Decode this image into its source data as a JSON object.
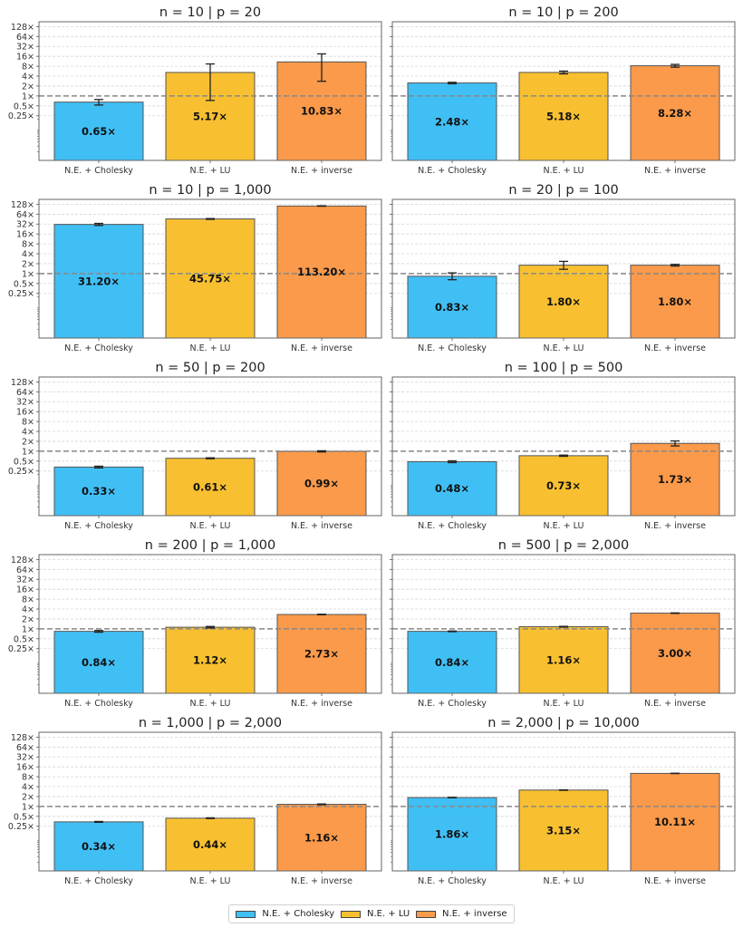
{
  "figure": {
    "ytick_labels": [
      "128×",
      "64×",
      "32×",
      "16×",
      "8×",
      "4×",
      "2×",
      "1×",
      "0.5×",
      "0.25×"
    ],
    "reference_label": "1×"
  },
  "legend": {
    "items": [
      {
        "label": "N.E. + Cholesky",
        "color": "#40BFF5"
      },
      {
        "label": "N.E. + LU",
        "color": "#F8C030"
      },
      {
        "label": "N.E. + inverse",
        "color": "#FA9A4A"
      }
    ]
  },
  "chart_data": [
    {
      "type": "bar",
      "title": "n = 10 | p = 20",
      "scale": "log2",
      "categories": [
        "N.E. + Cholesky",
        "N.E. + LU",
        "N.E. + inverse"
      ],
      "values": [
        0.65,
        5.17,
        10.83
      ],
      "labels": [
        "0.65×",
        "5.17×",
        "10.83×"
      ],
      "errors": [
        [
          0.53,
          0.78
        ],
        [
          0.73,
          9.4
        ],
        [
          2.8,
          19.0
        ]
      ],
      "yticks": [
        0.25,
        0.5,
        1,
        2,
        4,
        8,
        16,
        32,
        64,
        128
      ],
      "ylim": [
        0.011,
        180
      ],
      "reference_line": 1,
      "grid": true,
      "show_yticklabels": true
    },
    {
      "type": "bar",
      "title": "n = 10 | p = 200",
      "scale": "log2",
      "categories": [
        "N.E. + Cholesky",
        "N.E. + LU",
        "N.E. + inverse"
      ],
      "values": [
        2.48,
        5.18,
        8.28
      ],
      "labels": [
        "2.48×",
        "5.18×",
        "8.28×"
      ],
      "errors": [
        [
          2.35,
          2.6
        ],
        [
          4.7,
          5.7
        ],
        [
          7.5,
          9.1
        ]
      ],
      "yticks": [
        0.25,
        0.5,
        1,
        2,
        4,
        8,
        16,
        32,
        64,
        128
      ],
      "ylim": [
        0.011,
        180
      ],
      "reference_line": 1,
      "grid": true,
      "show_yticklabels": false
    },
    {
      "type": "bar",
      "title": "n = 10 | p = 1,000",
      "scale": "log2",
      "categories": [
        "N.E. + Cholesky",
        "N.E. + LU",
        "N.E. + inverse"
      ],
      "values": [
        31.2,
        45.75,
        113.2
      ],
      "labels": [
        "31.20×",
        "45.75×",
        "113.20×"
      ],
      "errors": [
        [
          29.0,
          33.5
        ],
        [
          44.5,
          47.0
        ],
        [
          111.5,
          115.0
        ]
      ],
      "yticks": [
        0.25,
        0.5,
        1,
        2,
        4,
        8,
        16,
        32,
        64,
        128
      ],
      "ylim": [
        0.011,
        180
      ],
      "reference_line": 1,
      "grid": true,
      "show_yticklabels": true
    },
    {
      "type": "bar",
      "title": "n = 20 | p = 100",
      "scale": "log2",
      "categories": [
        "N.E. + Cholesky",
        "N.E. + LU",
        "N.E. + inverse"
      ],
      "values": [
        0.83,
        1.8,
        1.8
      ],
      "labels": [
        "0.83×",
        "1.80×",
        "1.80×"
      ],
      "errors": [
        [
          0.65,
          1.05
        ],
        [
          1.35,
          2.35
        ],
        [
          1.7,
          1.9
        ]
      ],
      "yticks": [
        0.25,
        0.5,
        1,
        2,
        4,
        8,
        16,
        32,
        64,
        128
      ],
      "ylim": [
        0.011,
        180
      ],
      "reference_line": 1,
      "grid": true,
      "show_yticklabels": false
    },
    {
      "type": "bar",
      "title": "n = 50 | p = 200",
      "scale": "log2",
      "categories": [
        "N.E. + Cholesky",
        "N.E. + LU",
        "N.E. + inverse"
      ],
      "values": [
        0.33,
        0.61,
        0.99
      ],
      "labels": [
        "0.33×",
        "0.61×",
        "0.99×"
      ],
      "errors": [
        [
          0.31,
          0.35
        ],
        [
          0.59,
          0.63
        ],
        [
          0.95,
          1.03
        ]
      ],
      "yticks": [
        0.25,
        0.5,
        1,
        2,
        4,
        8,
        16,
        32,
        64,
        128
      ],
      "ylim": [
        0.011,
        180
      ],
      "reference_line": 1,
      "grid": true,
      "show_yticklabels": true
    },
    {
      "type": "bar",
      "title": "n = 100 | p = 500",
      "scale": "log2",
      "categories": [
        "N.E. + Cholesky",
        "N.E. + LU",
        "N.E. + inverse"
      ],
      "values": [
        0.48,
        0.73,
        1.73
      ],
      "labels": [
        "0.48×",
        "0.73×",
        "1.73×"
      ],
      "errors": [
        [
          0.45,
          0.51
        ],
        [
          0.7,
          0.76
        ],
        [
          1.45,
          2.05
        ]
      ],
      "yticks": [
        0.25,
        0.5,
        1,
        2,
        4,
        8,
        16,
        32,
        64,
        128
      ],
      "ylim": [
        0.011,
        180
      ],
      "reference_line": 1,
      "grid": true,
      "show_yticklabels": false
    },
    {
      "type": "bar",
      "title": "n = 200 | p = 1,000",
      "scale": "log2",
      "categories": [
        "N.E. + Cholesky",
        "N.E. + LU",
        "N.E. + inverse"
      ],
      "values": [
        0.84,
        1.12,
        2.73
      ],
      "labels": [
        "0.84×",
        "1.12×",
        "2.73×"
      ],
      "errors": [
        [
          0.79,
          0.89
        ],
        [
          1.06,
          1.18
        ],
        [
          2.68,
          2.78
        ]
      ],
      "yticks": [
        0.25,
        0.5,
        1,
        2,
        4,
        8,
        16,
        32,
        64,
        128
      ],
      "ylim": [
        0.011,
        180
      ],
      "reference_line": 1,
      "grid": true,
      "show_yticklabels": true
    },
    {
      "type": "bar",
      "title": "n = 500 | p = 2,000",
      "scale": "log2",
      "categories": [
        "N.E. + Cholesky",
        "N.E. + LU",
        "N.E. + inverse"
      ],
      "values": [
        0.84,
        1.16,
        3.0
      ],
      "labels": [
        "0.84×",
        "1.16×",
        "3.00×"
      ],
      "errors": [
        [
          0.82,
          0.86
        ],
        [
          1.13,
          1.19
        ],
        [
          2.95,
          3.05
        ]
      ],
      "yticks": [
        0.25,
        0.5,
        1,
        2,
        4,
        8,
        16,
        32,
        64,
        128
      ],
      "ylim": [
        0.011,
        180
      ],
      "reference_line": 1,
      "grid": true,
      "show_yticklabels": false
    },
    {
      "type": "bar",
      "title": "n = 1,000 | p = 2,000",
      "scale": "log2",
      "categories": [
        "N.E. + Cholesky",
        "N.E. + LU",
        "N.E. + inverse"
      ],
      "values": [
        0.34,
        0.44,
        1.16
      ],
      "labels": [
        "0.34×",
        "0.44×",
        "1.16×"
      ],
      "errors": [
        [
          0.33,
          0.35
        ],
        [
          0.43,
          0.45
        ],
        [
          1.13,
          1.19
        ]
      ],
      "yticks": [
        0.25,
        0.5,
        1,
        2,
        4,
        8,
        16,
        32,
        64,
        128
      ],
      "ylim": [
        0.011,
        180
      ],
      "reference_line": 1,
      "grid": true,
      "show_yticklabels": true
    },
    {
      "type": "bar",
      "title": "n = 2,000 | p = 10,000",
      "scale": "log2",
      "categories": [
        "N.E. + Cholesky",
        "N.E. + LU",
        "N.E. + inverse"
      ],
      "values": [
        1.86,
        3.15,
        10.11
      ],
      "labels": [
        "1.86×",
        "3.15×",
        "10.11×"
      ],
      "errors": [
        [
          1.83,
          1.89
        ],
        [
          3.1,
          3.2
        ],
        [
          10.0,
          10.22
        ]
      ],
      "yticks": [
        0.25,
        0.5,
        1,
        2,
        4,
        8,
        16,
        32,
        64,
        128
      ],
      "ylim": [
        0.011,
        180
      ],
      "reference_line": 1,
      "grid": true,
      "show_yticklabels": false
    }
  ]
}
